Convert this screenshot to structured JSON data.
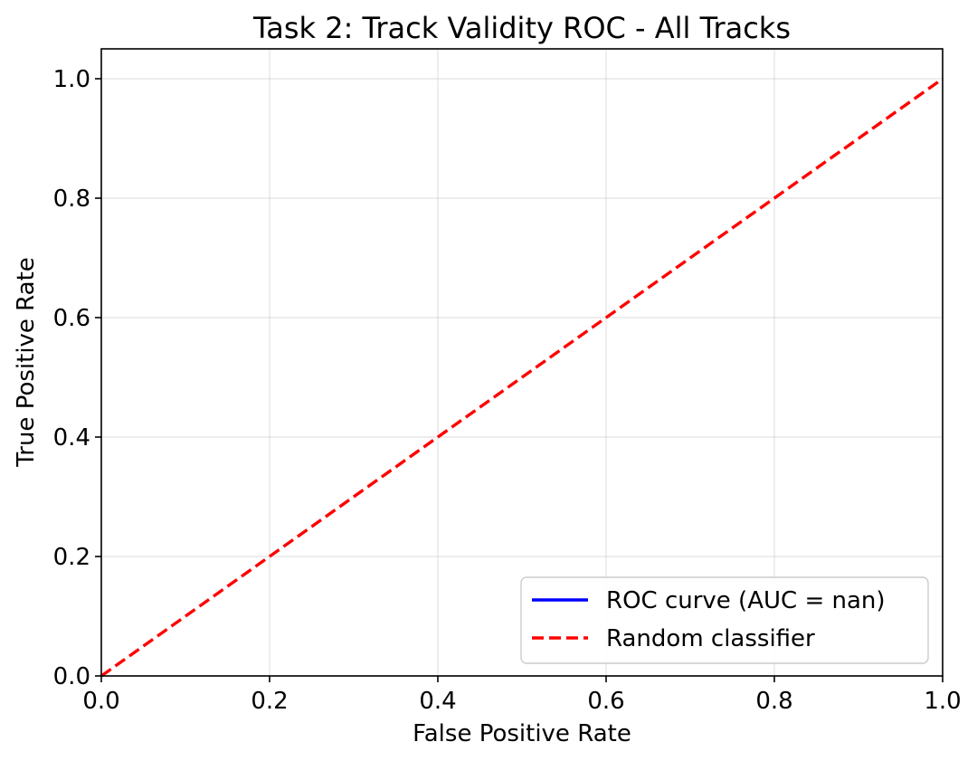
{
  "chart_data": {
    "type": "line",
    "title": "Task 2: Track Validity ROC - All Tracks",
    "xlabel": "False Positive Rate",
    "ylabel": "True Positive Rate",
    "xlim": [
      0.0,
      1.0
    ],
    "ylim": [
      0.0,
      1.05
    ],
    "xticks": [
      0.0,
      0.2,
      0.4,
      0.6,
      0.8,
      1.0
    ],
    "yticks": [
      0.0,
      0.2,
      0.4,
      0.6,
      0.8,
      1.0
    ],
    "xtick_labels": [
      "0.0",
      "0.2",
      "0.4",
      "0.6",
      "0.8",
      "1.0"
    ],
    "ytick_labels": [
      "0.0",
      "0.2",
      "0.4",
      "0.6",
      "0.8",
      "1.0"
    ],
    "grid": true,
    "legend_position": "bottom-right",
    "series": [
      {
        "name": "ROC curve (AUC = nan)",
        "color": "#0000ff",
        "style": "solid",
        "x": [],
        "y": []
      },
      {
        "name": "Random classifier",
        "color": "#ff0000",
        "style": "dashed",
        "x": [
          0,
          1
        ],
        "y": [
          0,
          1
        ]
      }
    ]
  }
}
